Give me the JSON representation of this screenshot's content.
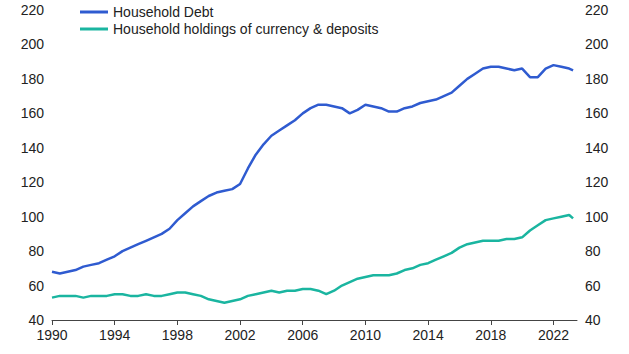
{
  "chart_data": {
    "type": "line",
    "x": [
      1990,
      1990.5,
      1991,
      1991.5,
      1992,
      1992.5,
      1993,
      1993.5,
      1994,
      1994.5,
      1995,
      1995.5,
      1996,
      1996.5,
      1997,
      1997.5,
      1998,
      1998.5,
      1999,
      1999.5,
      2000,
      2000.5,
      2001,
      2001.5,
      2002,
      2002.5,
      2003,
      2003.5,
      2004,
      2004.5,
      2005,
      2005.5,
      2006,
      2006.5,
      2007,
      2007.5,
      2008,
      2008.5,
      2009,
      2009.5,
      2010,
      2010.5,
      2011,
      2011.5,
      2012,
      2012.5,
      2013,
      2013.5,
      2014,
      2014.5,
      2015,
      2015.5,
      2016,
      2016.5,
      2017,
      2017.5,
      2018,
      2018.5,
      2019,
      2019.5,
      2020,
      2020.5,
      2021,
      2021.5,
      2022,
      2022.5,
      2023,
      2023.25
    ],
    "series": [
      {
        "name": "Household Debt",
        "color": "#2f5bd0",
        "values": [
          68,
          67,
          68,
          69,
          71,
          72,
          73,
          75,
          77,
          80,
          82,
          84,
          86,
          88,
          90,
          93,
          98,
          102,
          106,
          109,
          112,
          114,
          115,
          116,
          119,
          128,
          136,
          142,
          147,
          150,
          153,
          156,
          160,
          163,
          165,
          165,
          164,
          163,
          160,
          162,
          165,
          164,
          163,
          161,
          161,
          163,
          164,
          166,
          167,
          168,
          170,
          172,
          176,
          180,
          183,
          186,
          187,
          187,
          186,
          185,
          186,
          181,
          181,
          186,
          188,
          187,
          186,
          185
        ]
      },
      {
        "name": "Household holdings of currency & deposits",
        "color": "#1ab5a0",
        "values": [
          53,
          54,
          54,
          54,
          53,
          54,
          54,
          54,
          55,
          55,
          54,
          54,
          55,
          54,
          54,
          55,
          56,
          56,
          55,
          54,
          52,
          51,
          50,
          51,
          52,
          54,
          55,
          56,
          57,
          56,
          57,
          57,
          58,
          58,
          57,
          55,
          57,
          60,
          62,
          64,
          65,
          66,
          66,
          66,
          67,
          69,
          70,
          72,
          73,
          75,
          77,
          79,
          82,
          84,
          85,
          86,
          86,
          86,
          87,
          87,
          88,
          92,
          95,
          98,
          99,
          100,
          101,
          99
        ]
      }
    ],
    "xlim": [
      1990,
      2023.5
    ],
    "xticks": [
      1990,
      1994,
      1998,
      2002,
      2006,
      2010,
      2014,
      2018,
      2022
    ],
    "ylim": [
      40,
      220
    ],
    "yticks": [
      40,
      60,
      80,
      100,
      120,
      140,
      160,
      180,
      200,
      220
    ],
    "y2lim": [
      40,
      220
    ],
    "y2ticks": [
      40,
      60,
      80,
      100,
      120,
      140,
      160,
      180,
      200,
      220
    ],
    "grid": false,
    "legend": "upper left"
  }
}
